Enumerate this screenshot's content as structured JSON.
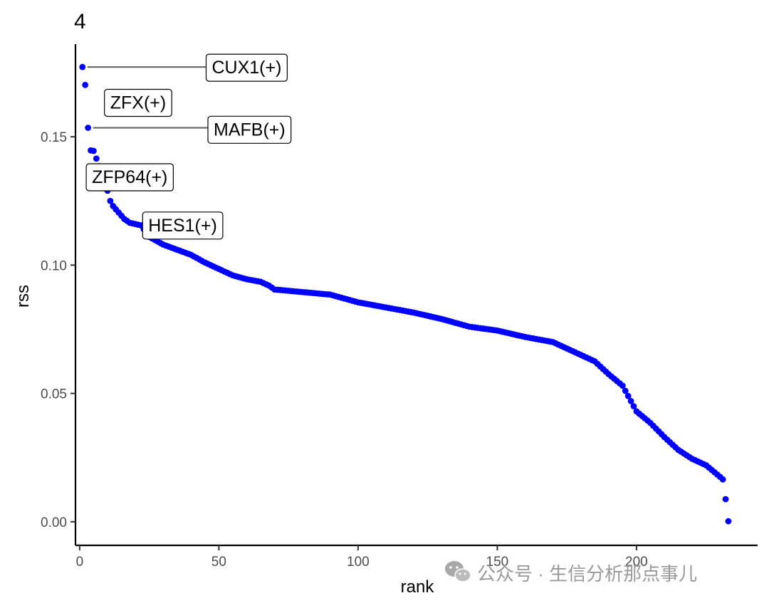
{
  "chart_data": {
    "type": "scatter",
    "panel_tag": "4",
    "xlabel": "rank",
    "ylabel": "rss",
    "xlim": [
      -1.5,
      243.5
    ],
    "ylim": [
      -0.0092,
      0.1861
    ],
    "x_ticks": [
      0,
      50,
      100,
      150,
      200
    ],
    "x_tick_labels": [
      "0",
      "50",
      "100",
      "150",
      "200"
    ],
    "y_ticks": [
      0,
      0.05,
      0.1,
      0.15
    ],
    "y_tick_labels": [
      "0.00",
      "0.05",
      "0.10",
      "0.15"
    ],
    "grid": false,
    "point_color": "#0000ff",
    "anchors": [
      [
        1,
        0.1772
      ],
      [
        2,
        0.1702
      ],
      [
        3,
        0.1535
      ],
      [
        4,
        0.1447
      ],
      [
        5,
        0.1445
      ],
      [
        6,
        0.1415
      ],
      [
        7,
        0.1385
      ],
      [
        8,
        0.1345
      ],
      [
        9,
        0.131
      ],
      [
        10,
        0.129
      ],
      [
        11,
        0.125
      ],
      [
        12,
        0.123
      ],
      [
        14,
        0.1205
      ],
      [
        16,
        0.118
      ],
      [
        18,
        0.1165
      ],
      [
        20,
        0.116
      ],
      [
        22,
        0.1155
      ],
      [
        25,
        0.111
      ],
      [
        30,
        0.108
      ],
      [
        35,
        0.106
      ],
      [
        40,
        0.104
      ],
      [
        45,
        0.101
      ],
      [
        50,
        0.0985
      ],
      [
        55,
        0.096
      ],
      [
        60,
        0.0945
      ],
      [
        65,
        0.0935
      ],
      [
        68,
        0.092
      ],
      [
        70,
        0.0905
      ],
      [
        80,
        0.0895
      ],
      [
        90,
        0.0885
      ],
      [
        100,
        0.0855
      ],
      [
        110,
        0.0835
      ],
      [
        120,
        0.0815
      ],
      [
        130,
        0.079
      ],
      [
        140,
        0.076
      ],
      [
        150,
        0.0745
      ],
      [
        160,
        0.072
      ],
      [
        170,
        0.07
      ],
      [
        175,
        0.0675
      ],
      [
        180,
        0.065
      ],
      [
        185,
        0.0625
      ],
      [
        190,
        0.0575
      ],
      [
        195,
        0.053
      ],
      [
        198,
        0.047
      ],
      [
        200,
        0.043
      ],
      [
        205,
        0.0385
      ],
      [
        210,
        0.033
      ],
      [
        215,
        0.028
      ],
      [
        220,
        0.0245
      ],
      [
        225,
        0.022
      ],
      [
        230,
        0.0175
      ],
      [
        231,
        0.0165
      ],
      [
        232,
        0.0088
      ],
      [
        233,
        0.0002
      ]
    ],
    "n_points": 233,
    "labels": [
      {
        "text": "CUX1(+)",
        "point_rank": 1,
        "point_rss": 0.1772,
        "label_rank": 60,
        "label_rss": 0.1772,
        "segment": true
      },
      {
        "text": "ZFX(+)",
        "point_rank": 2,
        "point_rss": 0.1702,
        "label_rank": 21,
        "label_rss": 0.1635,
        "segment": false
      },
      {
        "text": "MAFB(+)",
        "point_rank": 3,
        "point_rss": 0.1535,
        "label_rank": 61,
        "label_rss": 0.153,
        "segment": true
      },
      {
        "text": "ZFP64(+)",
        "point_rank": 6,
        "point_rss": 0.1415,
        "label_rank": 18,
        "label_rss": 0.1345,
        "segment": true
      },
      {
        "text": "HES1(+)",
        "point_rank": 25,
        "point_rss": 0.111,
        "label_rank": 37,
        "label_rss": 0.1157,
        "segment": true
      }
    ]
  },
  "watermark": {
    "text": "公众号 · 生信分析那点事儿",
    "icon": "wechat-icon"
  }
}
